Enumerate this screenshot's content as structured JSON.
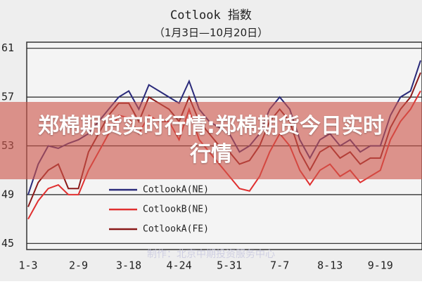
{
  "chart_data": {
    "type": "line",
    "title": "Cotlook 指数",
    "subtitle": "（1月3日—10月20日）",
    "watermark": "制作：北京中期投资服务中心",
    "categories": [
      "1-3",
      null,
      null,
      null,
      null,
      "2-9",
      null,
      null,
      null,
      null,
      "3-18",
      null,
      null,
      null,
      null,
      "4-24",
      null,
      null,
      null,
      null,
      "5-31",
      null,
      null,
      null,
      null,
      "7-7",
      null,
      null,
      null,
      null,
      "8-13",
      null,
      null,
      null,
      null,
      "9-19",
      null,
      null,
      null,
      null
    ],
    "ylim": [
      44.5,
      61.5
    ],
    "yticks": [
      45,
      49,
      53,
      57,
      61
    ],
    "grid": true,
    "series": [
      {
        "name": "CotlookA(NE)",
        "color": "#2a2a7a",
        "values": [
          49,
          51.5,
          53,
          52.8,
          53.2,
          53.5,
          54,
          55,
          56,
          57,
          57.5,
          56,
          58,
          57.5,
          57,
          56.5,
          58.3,
          56,
          55,
          54.5,
          54,
          52.5,
          53,
          54,
          56,
          57,
          56,
          53.5,
          52,
          53.5,
          54,
          53,
          53.5,
          52.5,
          53,
          53,
          55.5,
          57,
          57.5,
          60
        ]
      },
      {
        "name": "CotlookB(NE)",
        "color": "#e03030",
        "values": [
          47,
          48.5,
          49.5,
          49.8,
          49,
          49,
          51,
          52.5,
          54,
          55.5,
          55.3,
          54,
          55.5,
          55,
          55,
          53.5,
          56,
          53.5,
          52.5,
          51.5,
          50.5,
          49.5,
          49.3,
          50.5,
          52.5,
          54,
          53,
          51,
          49.8,
          51,
          51.5,
          50.5,
          51,
          50,
          50.5,
          51,
          53.5,
          55,
          56,
          57.5
        ]
      },
      {
        "name": "CotlookA(FE)",
        "color": "#8a1a1a",
        "values": [
          48,
          50,
          51,
          51.5,
          49.5,
          49.5,
          52.5,
          54,
          55.5,
          56.5,
          56.5,
          55,
          57,
          56.5,
          56,
          55,
          57,
          55,
          54,
          53,
          52.5,
          51.5,
          51.8,
          53,
          55,
          56,
          55,
          52.5,
          51,
          52.5,
          53,
          52,
          52.5,
          51.5,
          52,
          52,
          54.5,
          56,
          57,
          59
        ]
      }
    ]
  },
  "overlay": {
    "headline": "郑棉期货实时行情:郑棉期货今日实时行情"
  }
}
